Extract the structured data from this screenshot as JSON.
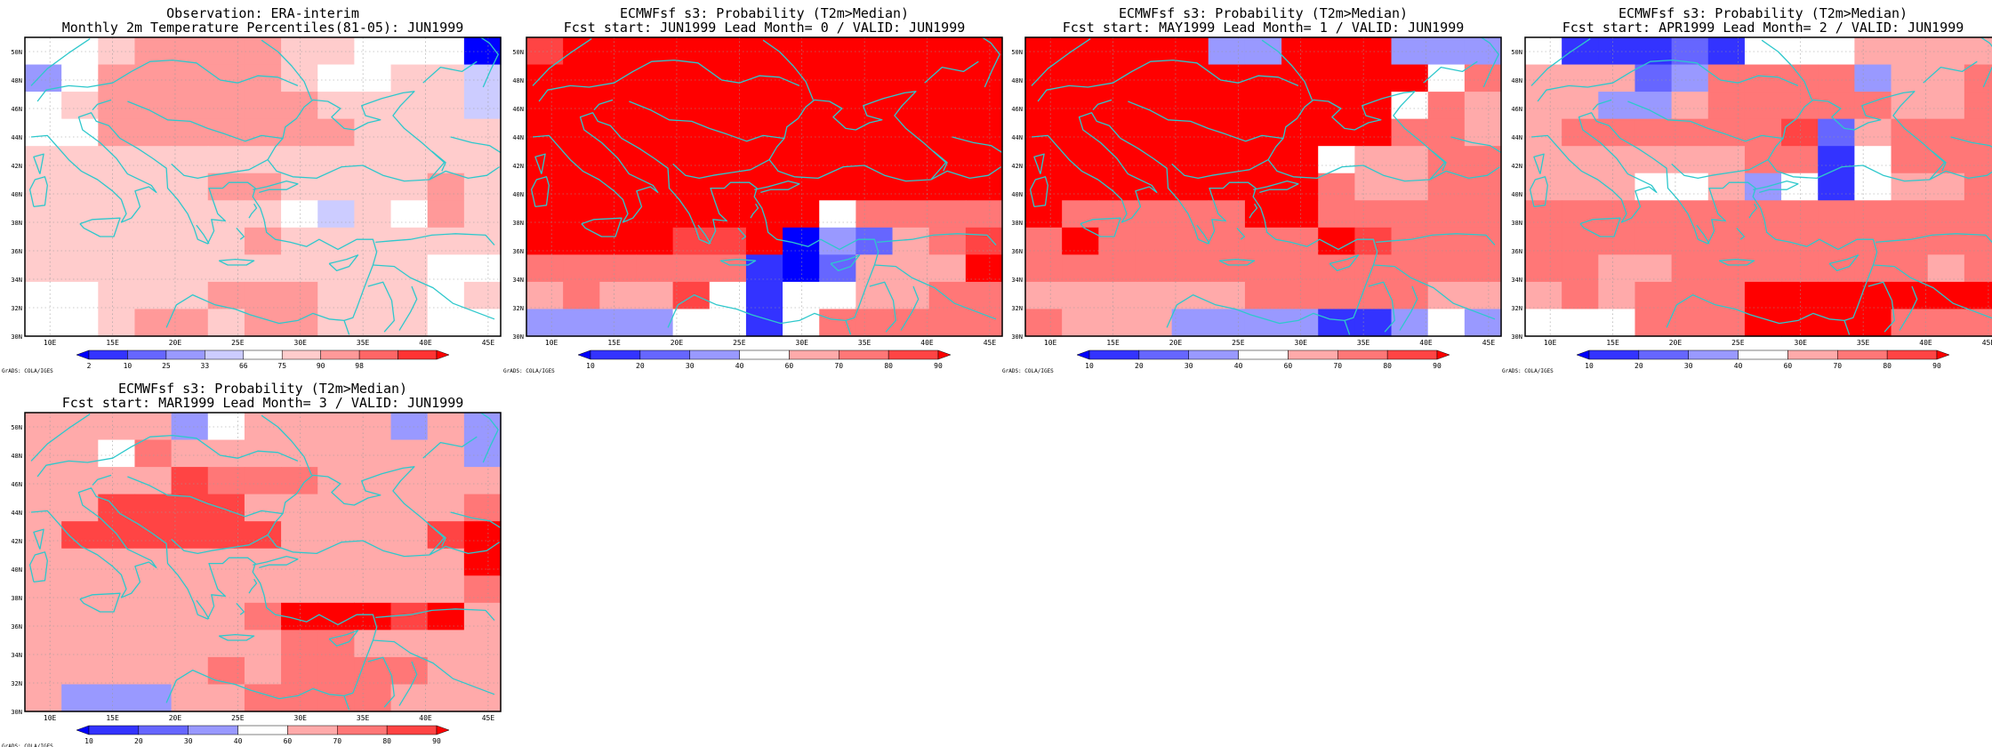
{
  "lon_labels": [
    "10E",
    "15E",
    "20E",
    "25E",
    "30E",
    "35E",
    "40E",
    "45E"
  ],
  "lat_labels": [
    "30N",
    "32N",
    "34N",
    "36N",
    "38N",
    "40N",
    "42N",
    "44N",
    "46N",
    "48N",
    "50N"
  ],
  "credit": "GrADS: COLA/IGES",
  "colors": {
    "observation": [
      "#0000ff",
      "#3333ff",
      "#6666ff",
      "#9999ff",
      "#ccccff",
      "#ffffff",
      "#ffcccc",
      "#ff9999",
      "#ff6666",
      "#ff3333",
      "#ff0000"
    ],
    "probability": [
      "#0000ff",
      "#3333ff",
      "#6666ff",
      "#9999ff",
      "#ffffff",
      "#ffaaaa",
      "#ff7777",
      "#ff4444",
      "#ff0000"
    ],
    "coastline": "#2ec8cc"
  },
  "panels": [
    {
      "title_line1": "Observation: ERA-interim",
      "title_line2": "Monthly 2m Temperature Percentiles(81-05): JUN1999",
      "colorbar_kind": "observation",
      "colorbar_labels": [
        "2",
        "10",
        "25",
        "33",
        "66",
        "75",
        "90",
        "98"
      ],
      "grid": [
        "5567777665550",
        "3577777655664",
        "5677777766664",
        "5577777776666",
        "6666666666666",
        "6666677666676",
        "6666666546576",
        "6666667666666",
        "6666666666655",
        "5566677766656",
        "5567767766655"
      ]
    },
    {
      "title_line1": "ECMWFsf s3: Probability (T2m>Median)",
      "title_line2": "Fcst start: JUN1999  Lead Month= 0 / VALID: JUN1999",
      "colorbar_kind": "probability",
      "colorbar_labels": [
        "10",
        "20",
        "30",
        "40",
        "60",
        "70",
        "80",
        "90"
      ],
      "grid": [
        "7888888888888",
        "8888888888888",
        "8888888888888",
        "8888888888888",
        "8888888888888",
        "8888888888888",
        "8888888846666",
        "8888778032567",
        "6666661025558",
        "5655741445566",
        "3333441466666"
      ]
    },
    {
      "title_line1": "ECMWFsf s3: Probability (T2m>Median)",
      "title_line2": "Fcst start: MAY1999  Lead Month= 1 / VALID: JUN1999",
      "colorbar_kind": "probability",
      "colorbar_labels": [
        "10",
        "20",
        "30",
        "40",
        "60",
        "70",
        "80",
        "90"
      ],
      "grid": [
        "8888833888333",
        "8888888888846",
        "8888888888465",
        "8888888888665",
        "8888888845566",
        "8888888865566",
        "8666668866666",
        "6866666687666",
        "6666666666666",
        "5555556666655",
        "6555333311343"
      ]
    },
    {
      "title_line1": "ECMWFsf s3: Probability (T2m>Median)",
      "title_line2": "Fcst start: APR1999  Lead Month= 2 / VALID: JUN1999",
      "colorbar_kind": "probability",
      "colorbar_labels": [
        "10",
        "20",
        "30",
        "40",
        "60",
        "70",
        "80",
        "90"
      ],
      "grid": [
        "4111214445555",
        "5552366663556",
        "5533566666556",
        "5666666725666",
        "5555556614666",
        "5554453414556",
        "6666666666666",
        "6666666666666",
        "6655666666656",
        "5656668888888",
        "4446668888666"
      ]
    },
    {
      "title_line1": "ECMWFsf s3: Probability (T2m>Median)",
      "title_line2": "Fcst start: MAR1999  Lead Month= 3 / VALID: JUN1999",
      "colorbar_kind": "probability",
      "colorbar_labels": [
        "10",
        "20",
        "30",
        "40",
        "60",
        "70",
        "80",
        "90"
      ],
      "grid": [
        "5555345555353",
        "5546555555553",
        "5555766655555",
        "5577775555556",
        "5777777555578",
        "5555555555558",
        "5555555555556",
        "5555556888785",
        "5555555665555",
        "5555565666655",
        "5333556666555"
      ]
    }
  ]
}
